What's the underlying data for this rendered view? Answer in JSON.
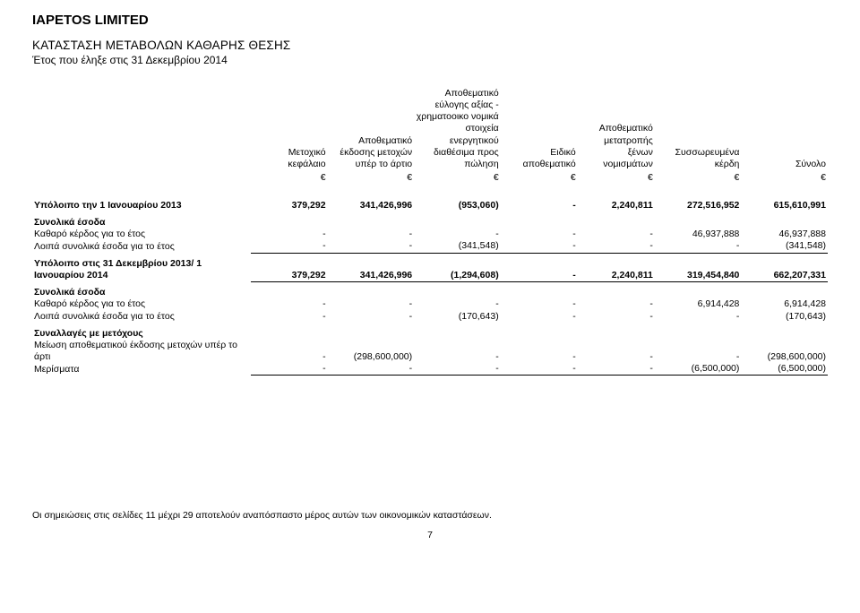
{
  "company": "IAPETOS LIMITED",
  "title": "ΚΑΤΑΣΤΑΣΗ ΜΕΤΑΒΟΛΩΝ ΚΑΘΑΡΗΣ ΘΕΣΗΣ",
  "subtitle": "Έτος που έληξε στις 31 Δεκεμβρίου 2014",
  "columns": {
    "c1": "Μετοχικό κεφάλαιο",
    "c2": "Αποθεματικό έκδοσης μετοχών υπέρ το άρτιο",
    "c3": "Αποθεματικό εύλογης αξίας - χρηματοοικο νομικά στοιχεία ενεργητικού διαθέσιμα προς πώληση",
    "c4": "Ειδικό αποθεματικό",
    "c5": "Αποθεματικό μετατροπής ξένων νομισμάτων",
    "c6": "Συσσωρευμένα κέρδη",
    "c7": "Σύνολο"
  },
  "currency": "€",
  "rows": {
    "bal13": {
      "label": "Υπόλοιπο την 1 Ιανουαρίου 2013",
      "v": [
        "379,292",
        "341,426,996",
        "(953,060)",
        "-",
        "2,240,811",
        "272,516,952",
        "615,610,991"
      ]
    },
    "sec1": "Συνολικά έσοδα",
    "profit13": {
      "label": "Καθαρό κέρδος για το έτος",
      "v": [
        "-",
        "-",
        "-",
        "-",
        "-",
        "46,937,888",
        "46,937,888"
      ]
    },
    "oci13": {
      "label": "Λοιπά συνολικά έσοδα για το έτος",
      "v": [
        "-",
        "-",
        "(341,548)",
        "-",
        "-",
        "-",
        "(341,548)"
      ]
    },
    "bal14open": {
      "label": "Υπόλοιπο στις 31 Δεκεμβρίου 2013/ 1 Ιανουαρίου 2014",
      "v": [
        "379,292",
        "341,426,996",
        "(1,294,608)",
        "-",
        "2,240,811",
        "319,454,840",
        "662,207,331"
      ]
    },
    "sec2": "Συνολικά έσοδα",
    "profit14": {
      "label": "Καθαρό κέρδος για το έτος",
      "v": [
        "-",
        "-",
        "-",
        "-",
        "-",
        "6,914,428",
        "6,914,428"
      ]
    },
    "oci14": {
      "label": "Λοιπά συνολικά έσοδα για το έτος",
      "v": [
        "-",
        "-",
        "(170,643)",
        "-",
        "-",
        "-",
        "(170,643)"
      ]
    },
    "sec3": "Συναλλαγές με μετόχους",
    "reduce": {
      "label": "Μείωση αποθεματικού έκδοσης μετοχών υπέρ το άρτι",
      "v": [
        "-",
        "(298,600,000)",
        "-",
        "-",
        "-",
        "-",
        "(298,600,000)"
      ]
    },
    "div": {
      "label": "Μερίσματα",
      "v": [
        "-",
        "-",
        "-",
        "-",
        "-",
        "(6,500,000)",
        "(6,500,000)"
      ]
    }
  },
  "footnote": "Οι σημειώσεις   στις σελίδες 11 μέχρι 29 αποτελούν αναπόσπαστο μέρος αυτών των οικονομικών καταστάσεων.",
  "pagenum": "7"
}
